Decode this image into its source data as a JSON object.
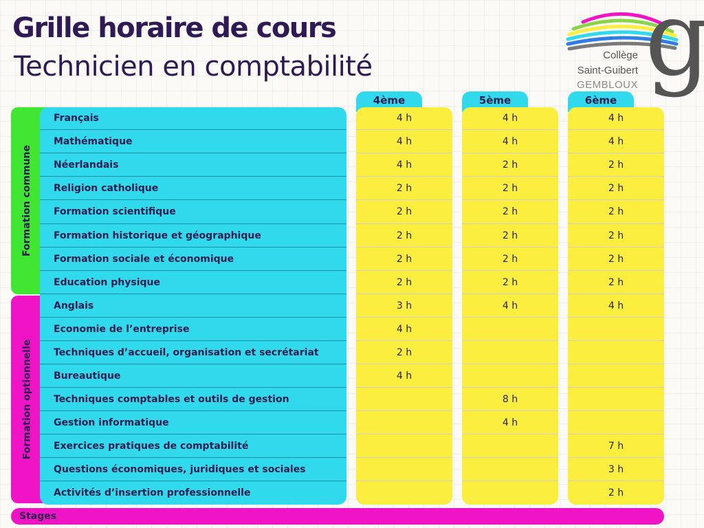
{
  "header": {
    "title": "Grille horaire de cours",
    "subtitle": "Technicien en comptabilité"
  },
  "logo": {
    "line1": "Collège",
    "line2": "Saint-Guibert",
    "line3": "GEMBLOUX",
    "monogram": "g",
    "stripe_colors": [
      "#f014c6",
      "#8bd34a",
      "#fbee3f",
      "#30d9ec",
      "#2f7ee6",
      "#7a7a7a"
    ]
  },
  "groups": {
    "commune": "Formation commune",
    "optionnelle": "Formation optionnelle"
  },
  "columns": [
    "4ème",
    "5ème",
    "6ème"
  ],
  "subjects": [
    "Français",
    "Mathématique",
    "Néerlandais",
    "Religion catholique",
    "Formation scientifique",
    "Formation historique et géographique",
    "Formation sociale et économique",
    "Education physique",
    "Anglais",
    "Economie de l’entreprise",
    "Techniques d’accueil, organisation et secrétariat",
    "Bureautique",
    "Techniques comptables et outils de gestion",
    "Gestion informatique",
    "Exercices pratiques de comptabilité",
    "Questions économiques, juridiques et sociales",
    "Activités d’insertion professionnelle"
  ],
  "hours": {
    "4eme": [
      "4 h",
      "4 h",
      "4 h",
      "2 h",
      "2 h",
      "2 h",
      "2 h",
      "2 h",
      "3 h",
      "4 h",
      "2 h",
      "4 h",
      "",
      "",
      "",
      "",
      ""
    ],
    "5eme": [
      "4 h",
      "4 h",
      "2 h",
      "2 h",
      "2 h",
      "2 h",
      "2 h",
      "2 h",
      "4 h",
      "",
      "",
      "",
      "8 h",
      "4 h",
      "",
      "",
      ""
    ],
    "6eme": [
      "4 h",
      "4 h",
      "2 h",
      "2 h",
      "2 h",
      "2 h",
      "2 h",
      "2 h",
      "4 h",
      "",
      "",
      "",
      "",
      "",
      "7 h",
      "3 h",
      "2 h"
    ]
  },
  "stages": "Stages",
  "colors": {
    "cyan": "#30d9ec",
    "yellow": "#fbee3f",
    "green": "#41e632",
    "magenta": "#f014c6",
    "text": "#2b1d4f"
  }
}
